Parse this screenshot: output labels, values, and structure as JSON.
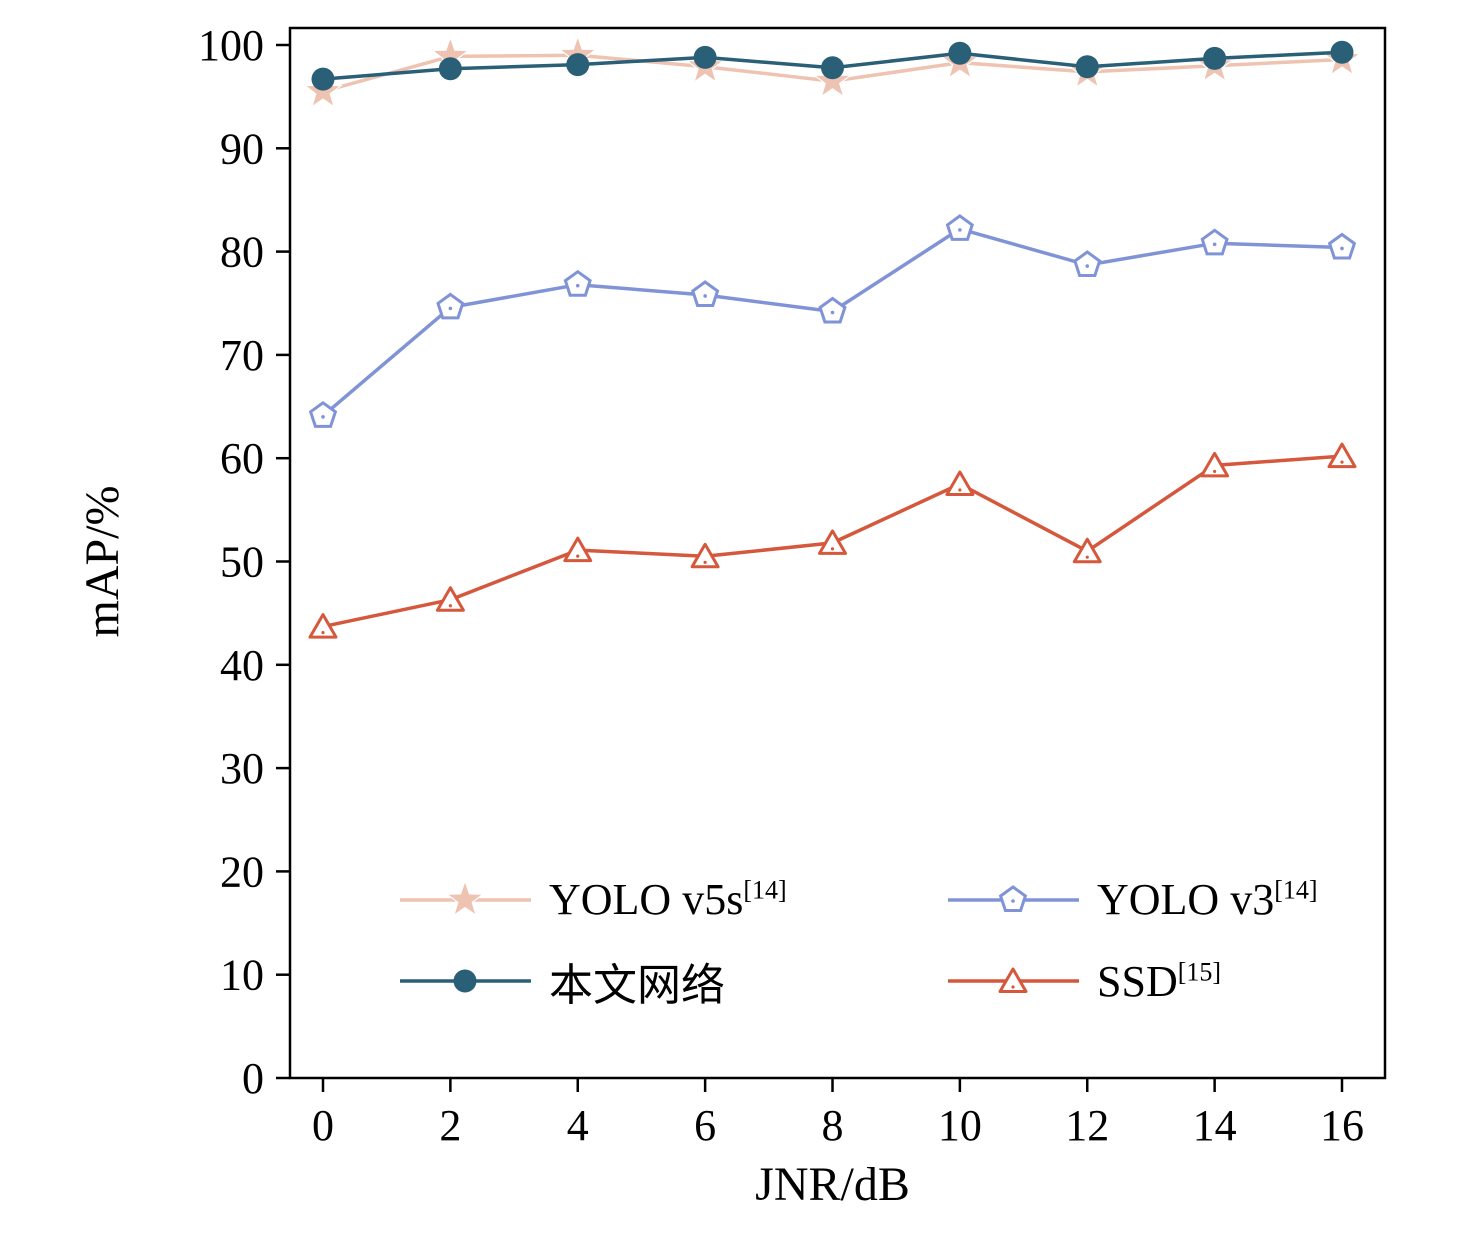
{
  "chart_data": {
    "type": "line",
    "x": [
      0,
      2,
      4,
      6,
      8,
      10,
      12,
      14,
      16
    ],
    "xlabel": "JNR/dB",
    "ylabel": "mAP/%",
    "xlim": [
      0,
      16
    ],
    "ylim": [
      0,
      100
    ],
    "ytick_step": 10,
    "xticks": [
      0,
      2,
      4,
      6,
      8,
      10,
      12,
      14,
      16
    ],
    "yticks": [
      0,
      10,
      20,
      30,
      40,
      50,
      60,
      70,
      80,
      90,
      100
    ],
    "grid": false,
    "legend_position": "inside-bottom-left",
    "axis_color": "#000000",
    "series": [
      {
        "name": "YOLO v5s",
        "sup": "[14]",
        "marker": "star",
        "color": "#eec3b1",
        "values": [
          95.5,
          98.9,
          99.0,
          97.9,
          96.5,
          98.3,
          97.4,
          98.0,
          98.6
        ]
      },
      {
        "name": "本文网络",
        "sup": "",
        "marker": "circle",
        "color": "#2a5f78",
        "values": [
          96.7,
          97.7,
          98.1,
          98.8,
          97.8,
          99.2,
          97.9,
          98.7,
          99.3
        ]
      },
      {
        "name": "YOLO v3",
        "sup": "[14]",
        "marker": "pentagon",
        "color": "#8093d6",
        "values": [
          64.1,
          74.6,
          76.8,
          75.8,
          74.2,
          82.2,
          78.7,
          80.8,
          80.4
        ]
      },
      {
        "name": "SSD",
        "sup": "[15]",
        "marker": "triangle",
        "color": "#d5573c",
        "values": [
          43.7,
          46.3,
          51.1,
          50.5,
          51.8,
          57.5,
          51.0,
          59.3,
          60.2
        ]
      }
    ]
  }
}
